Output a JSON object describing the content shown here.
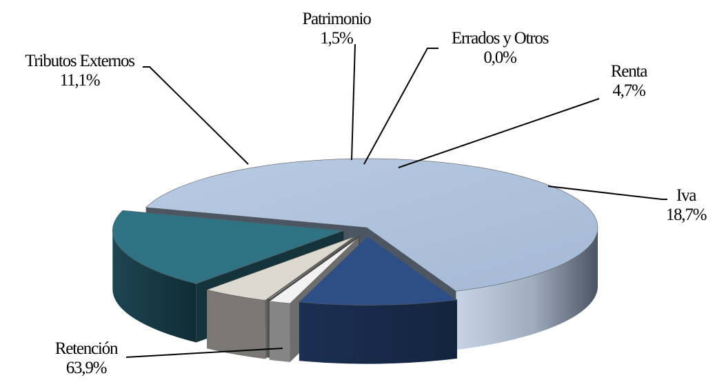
{
  "chart_data": {
    "type": "pie",
    "style": "3d-exploded",
    "slices": [
      {
        "name": "Retención",
        "value": 63.9,
        "label": "63,9%",
        "color": "#a9bfdc"
      },
      {
        "name": "Tributos Externos",
        "value": 11.1,
        "label": "11,1%",
        "color": "#2d4f86"
      },
      {
        "name": "Patrimonio",
        "value": 1.5,
        "label": "1,5%",
        "color": "#f2f2f2"
      },
      {
        "name": "Errados y Otros",
        "value": 0.0,
        "label": "0,0%",
        "color": "#8c8c8c"
      },
      {
        "name": "Renta",
        "value": 4.7,
        "label": "4,7%",
        "color": "#dcdad0"
      },
      {
        "name": "Iva",
        "value": 18.7,
        "label": "18,7%",
        "color": "#2f7283"
      }
    ],
    "legend": "none"
  }
}
